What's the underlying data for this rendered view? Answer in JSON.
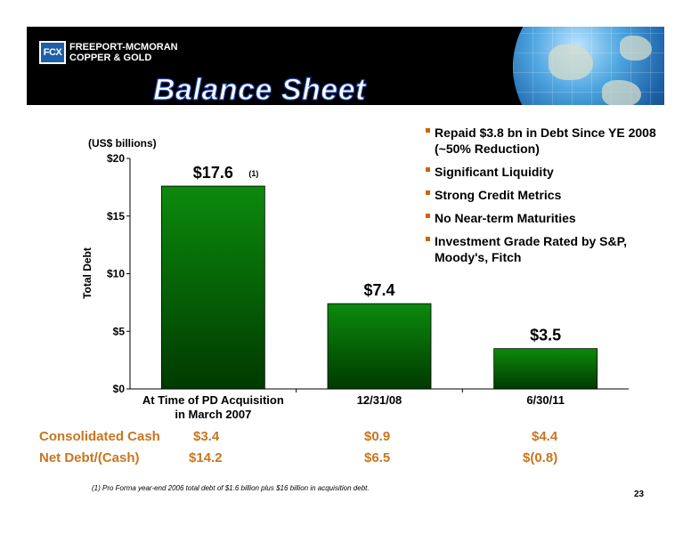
{
  "header": {
    "logo_mark": "FCX",
    "logo_line1": "FREEPORT-MCMORAN",
    "logo_line2": "COPPER & GOLD",
    "title": "Balance Sheet"
  },
  "chart_data": {
    "type": "bar",
    "units_label": "(US$ billions)",
    "ylabel": "Total Debt",
    "categories": [
      "At Time of PD Acquisition in March 2007",
      "12/31/08",
      "6/30/11"
    ],
    "category_lines": [
      [
        "At Time of PD Acquisition",
        "in March 2007"
      ],
      [
        "12/31/08"
      ],
      [
        "6/30/11"
      ]
    ],
    "values": [
      17.6,
      7.4,
      3.5
    ],
    "data_labels": [
      "$17.6",
      "$7.4",
      "$3.5"
    ],
    "label_note": "(1)",
    "ylim": [
      0,
      20
    ],
    "yticks": [
      0,
      5,
      10,
      15,
      20
    ],
    "ytick_labels": [
      "$0",
      "$5",
      "$10",
      "$15",
      "$20"
    ],
    "bar_color_top": "#0c8a0c",
    "bar_color_bottom": "#003a00"
  },
  "bullets": [
    "Repaid $3.8 bn in Debt Since YE 2008 (~50% Reduction)",
    "Significant Liquidity",
    "Strong Credit Metrics",
    "No Near-term Maturities",
    "Investment Grade Rated by S&P, Moody's, Fitch"
  ],
  "summary": {
    "consolidated_cash": {
      "label": "Consolidated Cash",
      "values": [
        "$3.4",
        "$0.9",
        "$4.4"
      ]
    },
    "net_debt": {
      "label": "Net Debt/(Cash)",
      "values": [
        "$14.2",
        "$6.5",
        "$(0.8)"
      ]
    }
  },
  "footnote": "(1)   Pro Forma year-end 2006 total debt of $1.6 billion plus $16 billion in acquisition debt.",
  "page_number": "23",
  "colors": {
    "accent": "#c8761f",
    "bullet": "#cc6600",
    "header": "#000000"
  }
}
